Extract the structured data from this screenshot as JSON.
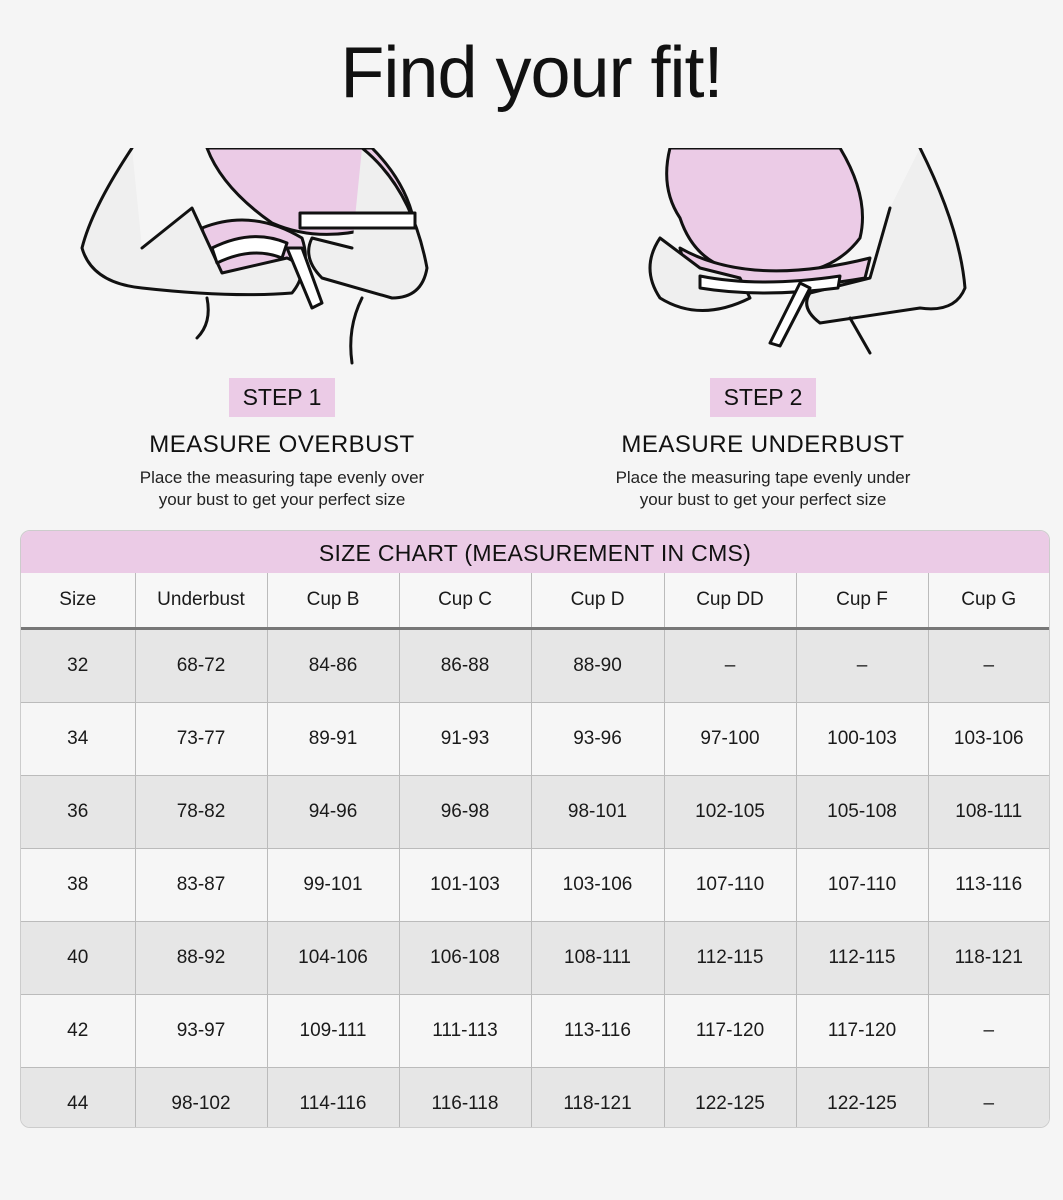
{
  "title": "Find your fit!",
  "colors": {
    "accent_pink": "#ebcbe6",
    "background": "#f5f5f5"
  },
  "steps": [
    {
      "badge": "STEP 1",
      "title": "MEASURE OVERBUST",
      "desc_line1": "Place the measuring tape evenly over",
      "desc_line2": "your bust to get your perfect size",
      "illustration": "measure-overbust-illustration"
    },
    {
      "badge": "STEP 2",
      "title": "MEASURE UNDERBUST",
      "desc_line1": "Place the measuring tape evenly under",
      "desc_line2": "your bust to get your perfect size",
      "illustration": "measure-underbust-illustration"
    }
  ],
  "size_chart": {
    "title": "SIZE CHART (MEASUREMENT IN CMS)",
    "headers": [
      "Size",
      "Underbust",
      "Cup B",
      "Cup C",
      "Cup D",
      "Cup DD",
      "Cup F",
      "Cup G"
    ],
    "rows": [
      [
        "32",
        "68-72",
        "84-86",
        "86-88",
        "88-90",
        "–",
        "–",
        "–"
      ],
      [
        "34",
        "73-77",
        "89-91",
        "91-93",
        "93-96",
        "97-100",
        "100-103",
        "103-106"
      ],
      [
        "36",
        "78-82",
        "94-96",
        "96-98",
        "98-101",
        "102-105",
        "105-108",
        "108-111"
      ],
      [
        "38",
        "83-87",
        "99-101",
        "101-103",
        "103-106",
        "107-110",
        "107-110",
        "113-116"
      ],
      [
        "40",
        "88-92",
        "104-106",
        "106-108",
        "108-111",
        "112-115",
        "112-115",
        "118-121"
      ],
      [
        "42",
        "93-97",
        "109-111",
        "111-113",
        "113-116",
        "117-120",
        "117-120",
        "–"
      ],
      [
        "44",
        "98-102",
        "114-116",
        "116-118",
        "118-121",
        "122-125",
        "122-125",
        "–"
      ]
    ]
  }
}
